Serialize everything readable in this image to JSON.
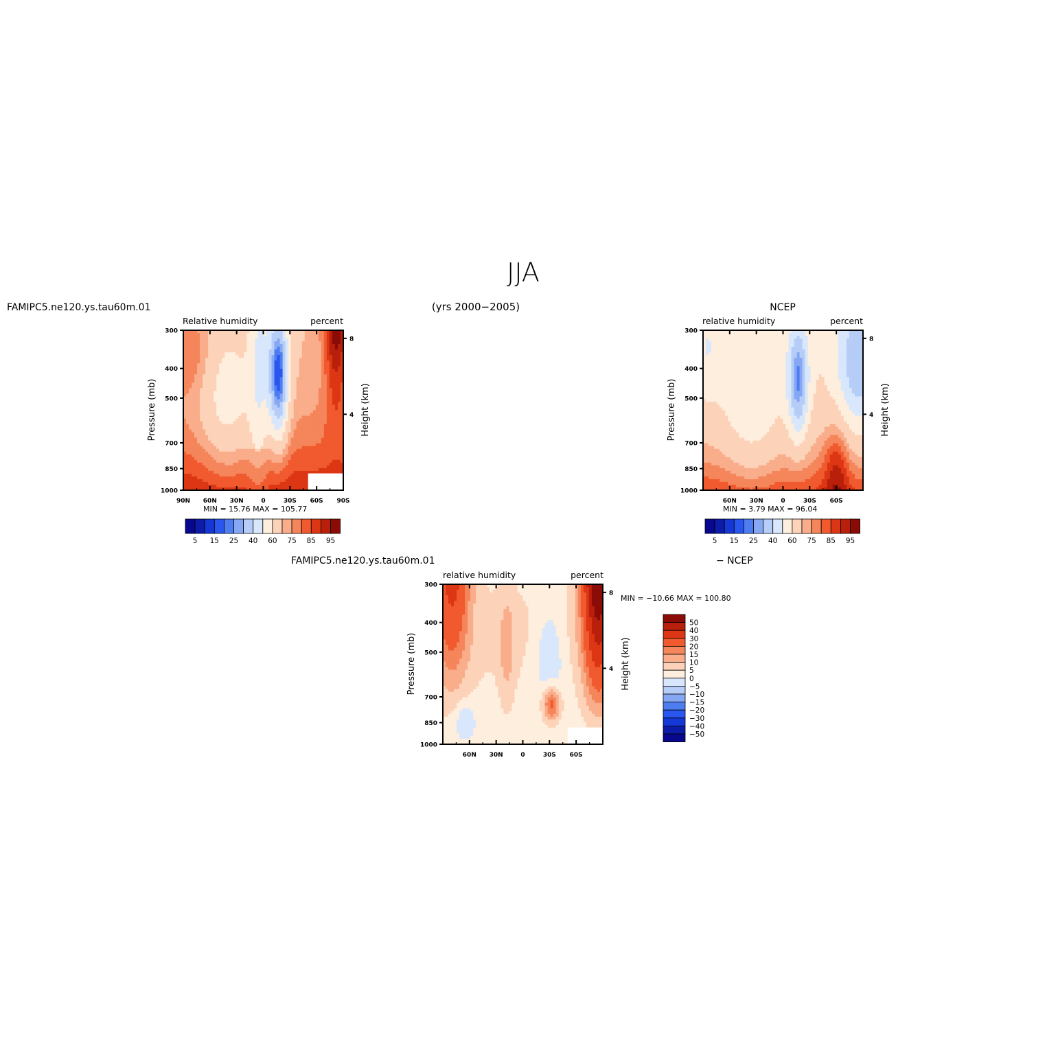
{
  "page": {
    "title": "JJA",
    "subtitle": "(yrs 2000−2005)"
  },
  "chart_data": [
    {
      "type": "heatmap",
      "label_left": "FAMIPC5.ne120.ys.tau60m.01",
      "label_center": "",
      "inner_left": "Relative  humidity",
      "inner_right": "percent",
      "ylabel": "Pressure  (mb)",
      "y2label": "Height  (km)",
      "yticks": [
        300,
        400,
        500,
        700,
        850,
        1000
      ],
      "ytick_labels": [
        "300",
        "400",
        "500",
        "700",
        "850",
        "1000"
      ],
      "y2ticks": [
        8,
        4
      ],
      "xticks": [
        "90N",
        "60N",
        "30N",
        "0",
        "30S",
        "60S",
        "90S"
      ],
      "xlim": [
        90,
        -90
      ],
      "ylim": [
        1000,
        300
      ],
      "stats": "MIN =    15.76   MAX = 105.77",
      "colorbar": {
        "orientation": "horizontal",
        "labels": [
          "5",
          "15",
          "25",
          "40",
          "60",
          "75",
          "85",
          "95"
        ],
        "colors": [
          "#08088f",
          "#0c1ca8",
          "#1437d6",
          "#2856ee",
          "#4d7df0",
          "#86a8f4",
          "#b5cdf7",
          "#d8e7fb",
          "#fdeedd",
          "#fcd3b8",
          "#f9ad8a",
          "#f5855a",
          "#f05a2e",
          "#dc3614",
          "#b8200b",
          "#8b0c06"
        ]
      },
      "field": "model"
    },
    {
      "type": "heatmap",
      "label_left": "",
      "label_center": "NCEP",
      "inner_left": "relative  humidity",
      "inner_right": "percent",
      "ylabel": "Pressure  (mb)",
      "y2label": "Height  (km)",
      "yticks": [
        300,
        400,
        500,
        700,
        850,
        1000
      ],
      "ytick_labels": [
        "300",
        "400",
        "500",
        "700",
        "850",
        "1000"
      ],
      "y2ticks": [
        8,
        4
      ],
      "xticks": [
        "60N",
        "30N",
        "0",
        "30S",
        "60S"
      ],
      "xlim": [
        90,
        -90
      ],
      "ylim": [
        1000,
        300
      ],
      "stats": "MIN =      3.79   MAX =    96.04",
      "colorbar": {
        "orientation": "horizontal",
        "labels": [
          "5",
          "15",
          "25",
          "40",
          "60",
          "75",
          "85",
          "95"
        ],
        "colors": [
          "#08088f",
          "#0c1ca8",
          "#1437d6",
          "#2856ee",
          "#4d7df0",
          "#86a8f4",
          "#b5cdf7",
          "#d8e7fb",
          "#fdeedd",
          "#fcd3b8",
          "#f9ad8a",
          "#f5855a",
          "#f05a2e",
          "#dc3614",
          "#b8200b",
          "#8b0c06"
        ]
      },
      "field": "ncep"
    },
    {
      "type": "heatmap",
      "label_left": "FAMIPC5.ne120.ys.tau60m.01",
      "label_center": "−  NCEP",
      "inner_left": "relative  humidity",
      "inner_right": "percent",
      "ylabel": "Pressure  (mb)",
      "y2label": "Height  (km)",
      "yticks": [
        300,
        400,
        500,
        700,
        850,
        1000
      ],
      "ytick_labels": [
        "300",
        "400",
        "500",
        "700",
        "850",
        "1000"
      ],
      "y2ticks": [
        8,
        4
      ],
      "xticks": [
        "60N",
        "30N",
        "0",
        "30S",
        "60S"
      ],
      "xlim": [
        90,
        -90
      ],
      "ylim": [
        1000,
        300
      ],
      "stats": "MIN =  −10.66   MAX = 100.80",
      "colorbar": {
        "orientation": "vertical",
        "labels": [
          "50",
          "40",
          "30",
          "20",
          "15",
          "10",
          "5",
          "0",
          "−5",
          "−10",
          "−15",
          "−20",
          "−30",
          "−40",
          "−50"
        ],
        "colors": [
          "#8b0c06",
          "#b8200b",
          "#dc3614",
          "#f05a2e",
          "#f5855a",
          "#f9ad8a",
          "#fcd3b8",
          "#fdeedd",
          "#d8e7fb",
          "#b5cdf7",
          "#86a8f4",
          "#4d7df0",
          "#2856ee",
          "#1437d6",
          "#0c1ca8",
          "#08088f"
        ]
      },
      "field": "diff"
    }
  ]
}
